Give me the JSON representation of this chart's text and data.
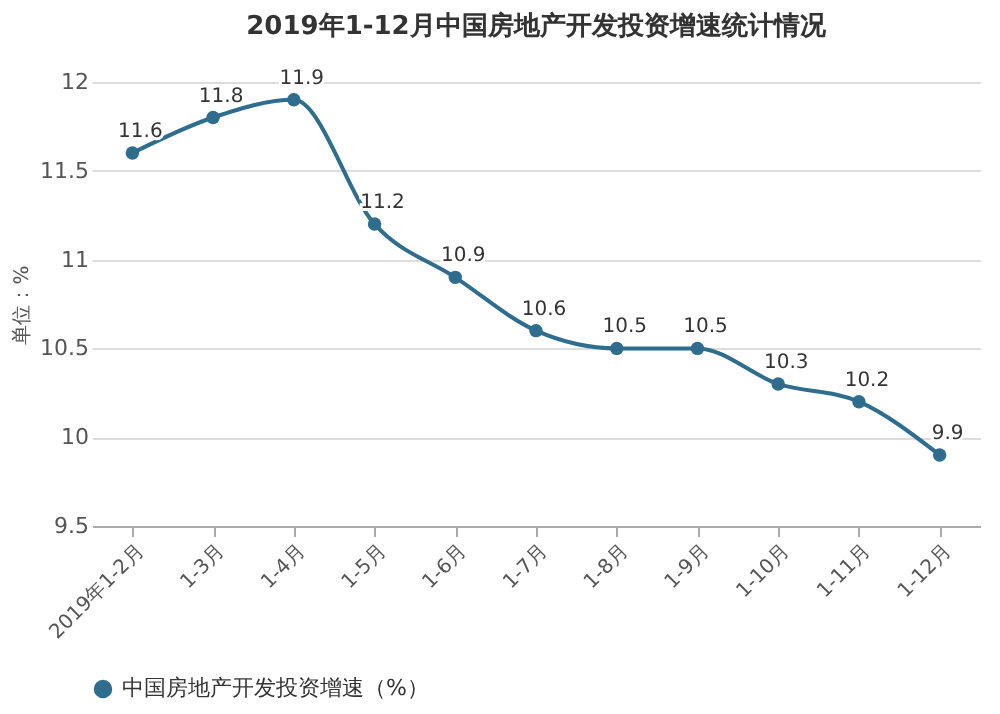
{
  "chart_data": {
    "type": "line",
    "title": "2019年1-12月中国房地产开发投资增速统计情况",
    "ylabel": "单位：%",
    "categories": [
      "2019年1-2月",
      "1-3月",
      "1-4月",
      "1-5月",
      "1-6月",
      "1-7月",
      "1-8月",
      "1-9月",
      "1-10月",
      "1-11月",
      "1-12月"
    ],
    "series": [
      {
        "name": "中国房地产开发投资增速（%）",
        "color": "#2e6d8e",
        "values": [
          11.6,
          11.8,
          11.9,
          11.2,
          10.9,
          10.6,
          10.5,
          10.5,
          10.3,
          10.2,
          9.9
        ]
      }
    ],
    "ylim": [
      9.5,
      12
    ],
    "yticks": [
      9.5,
      10,
      10.5,
      11,
      11.5,
      12
    ],
    "grid": "y",
    "legend": "bottom",
    "marker": "circle",
    "data_labels": true,
    "line_style": "solid"
  }
}
